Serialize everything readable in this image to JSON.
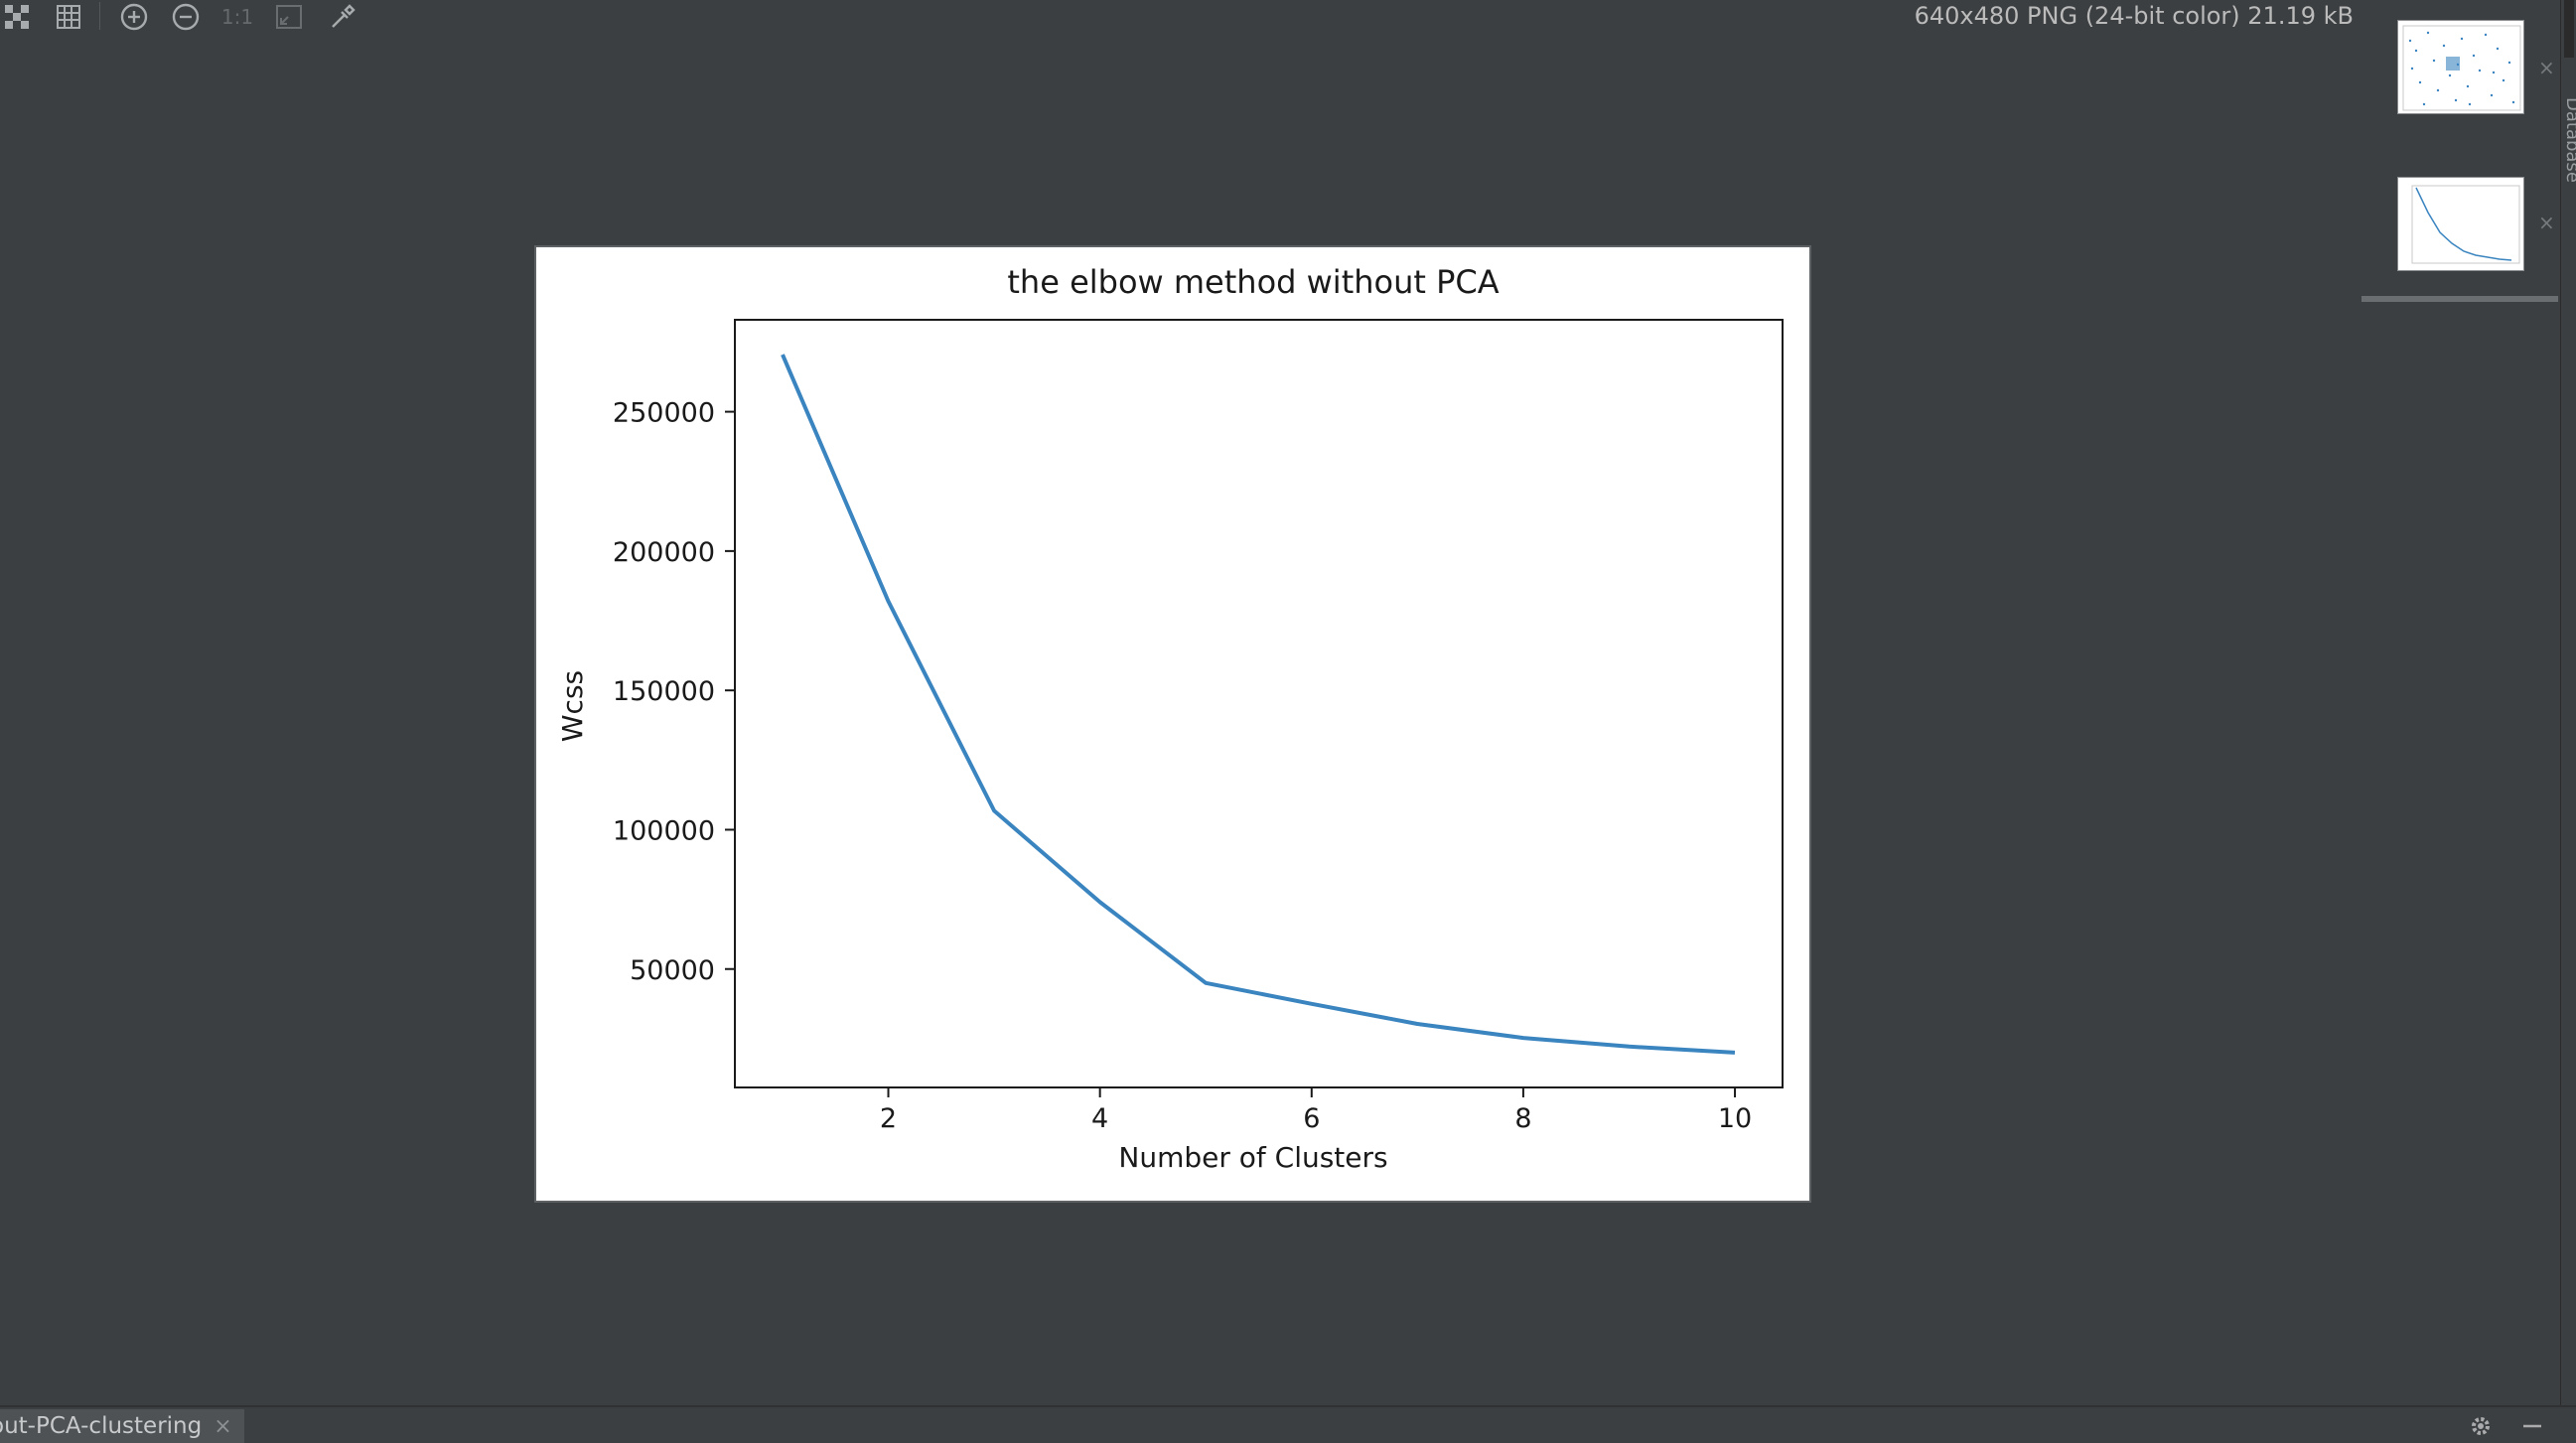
{
  "toolbar": {
    "buttons": [
      {
        "name": "chessboard-icon"
      },
      {
        "name": "grid-icon"
      },
      {
        "name": "zoom-in-icon"
      },
      {
        "name": "zoom-out-icon"
      },
      {
        "name": "actual-size-icon",
        "label": "1:1"
      },
      {
        "name": "fit-window-icon"
      },
      {
        "name": "color-picker-icon"
      }
    ],
    "image_info": "640x480 PNG (24-bit color) 21.19 kB"
  },
  "right_panel": {
    "edge_label": "Database"
  },
  "bottom_bar": {
    "tab_label": "out-PCA-clustering",
    "icons": [
      "settings-icon",
      "minimize-icon"
    ]
  },
  "chart_data": {
    "type": "line",
    "title": "the elbow method without PCA",
    "xlabel": "Number of Clusters",
    "ylabel": "Wcss",
    "x": [
      1,
      2,
      3,
      4,
      5,
      6,
      7,
      8,
      9,
      10
    ],
    "series": [
      {
        "values": [
          270500,
          182000,
          106800,
          74000,
          45000,
          37500,
          30300,
          25300,
          22200,
          20000
        ],
        "color": "#3a84c0"
      }
    ],
    "xlim": [
      0.55,
      10.45
    ],
    "ylim": [
      7500,
      283000
    ],
    "xticks": [
      2,
      4,
      6,
      8,
      10
    ],
    "yticks": [
      50000,
      100000,
      150000,
      200000,
      250000
    ],
    "xticklabels": [
      "2",
      "4",
      "6",
      "8",
      "10"
    ],
    "yticklabels": [
      "50000",
      "100000",
      "150000",
      "200000",
      "250000"
    ],
    "grid": false
  }
}
